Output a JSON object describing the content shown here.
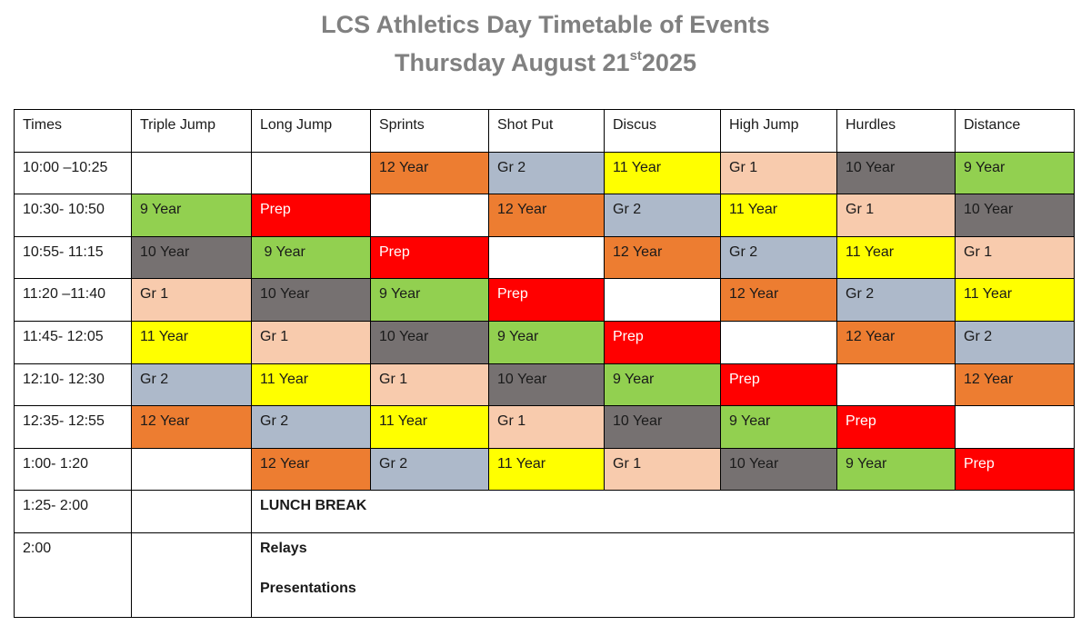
{
  "title": {
    "line1": "LCS Athletics Day Timetable of Events",
    "line2_prefix": "Thursday August 21",
    "line2_sup": "st",
    "line2_suffix": "2025"
  },
  "headers": [
    "Times",
    "Triple Jump",
    "Long Jump",
    "Sprints",
    "Shot Put",
    "Discus",
    "High Jump",
    "Hurdles",
    "Distance"
  ],
  "group_colors": {
    "12 Year": "#ed7d31",
    "Gr 2": "#adb9ca",
    "11 Year": "#ffff00",
    "Gr 1": "#f8cbad",
    "10 Year": "#767171",
    "9 Year": "#92d050",
    "Prep": "#ff0000",
    "": "#ffffff"
  },
  "rows": [
    {
      "time": "10:00 –10:25",
      "cells": [
        "",
        "",
        "12 Year",
        "Gr 2",
        "11 Year",
        "Gr 1",
        "10 Year",
        "9 Year"
      ]
    },
    {
      "time": "10:30- 10:50",
      "cells": [
        "9 Year",
        "Prep",
        "",
        "12 Year",
        "Gr 2",
        "11 Year",
        "Gr 1",
        "10 Year"
      ]
    },
    {
      "time": "10:55- 11:15",
      "cells": [
        "10 Year",
        " 9 Year",
        "Prep",
        "",
        "12 Year",
        "Gr 2",
        "11 Year",
        "Gr 1"
      ]
    },
    {
      "time": "11:20 –11:40",
      "cells": [
        "Gr 1",
        "10 Year",
        "9 Year",
        "Prep",
        "",
        "12 Year",
        "Gr 2",
        "11 Year"
      ]
    },
    {
      "time": "11:45- 12:05",
      "cells": [
        "11 Year",
        "Gr 1",
        "10 Year",
        "9 Year",
        "Prep",
        "",
        "12 Year",
        "Gr 2"
      ]
    },
    {
      "time": "12:10- 12:30",
      "cells": [
        "Gr 2",
        "11 Year",
        "Gr 1",
        "10 Year",
        "9 Year",
        "Prep",
        "",
        "12 Year"
      ]
    },
    {
      "time": "12:35- 12:55",
      "cells": [
        "12 Year",
        "Gr 2",
        "11 Year",
        "Gr 1",
        "10 Year",
        "9 Year",
        "Prep",
        ""
      ]
    },
    {
      "time": "1:00- 1:20",
      "cells": [
        "",
        "12 Year",
        "Gr 2",
        "11 Year",
        "Gr 1",
        "10 Year",
        "9 Year",
        "Prep"
      ]
    }
  ],
  "lunch": {
    "time": "1:25- 2:00",
    "label": "LUNCH BREAK"
  },
  "final": {
    "time": "2:00",
    "line1": "Relays",
    "line2": "Presentations"
  }
}
